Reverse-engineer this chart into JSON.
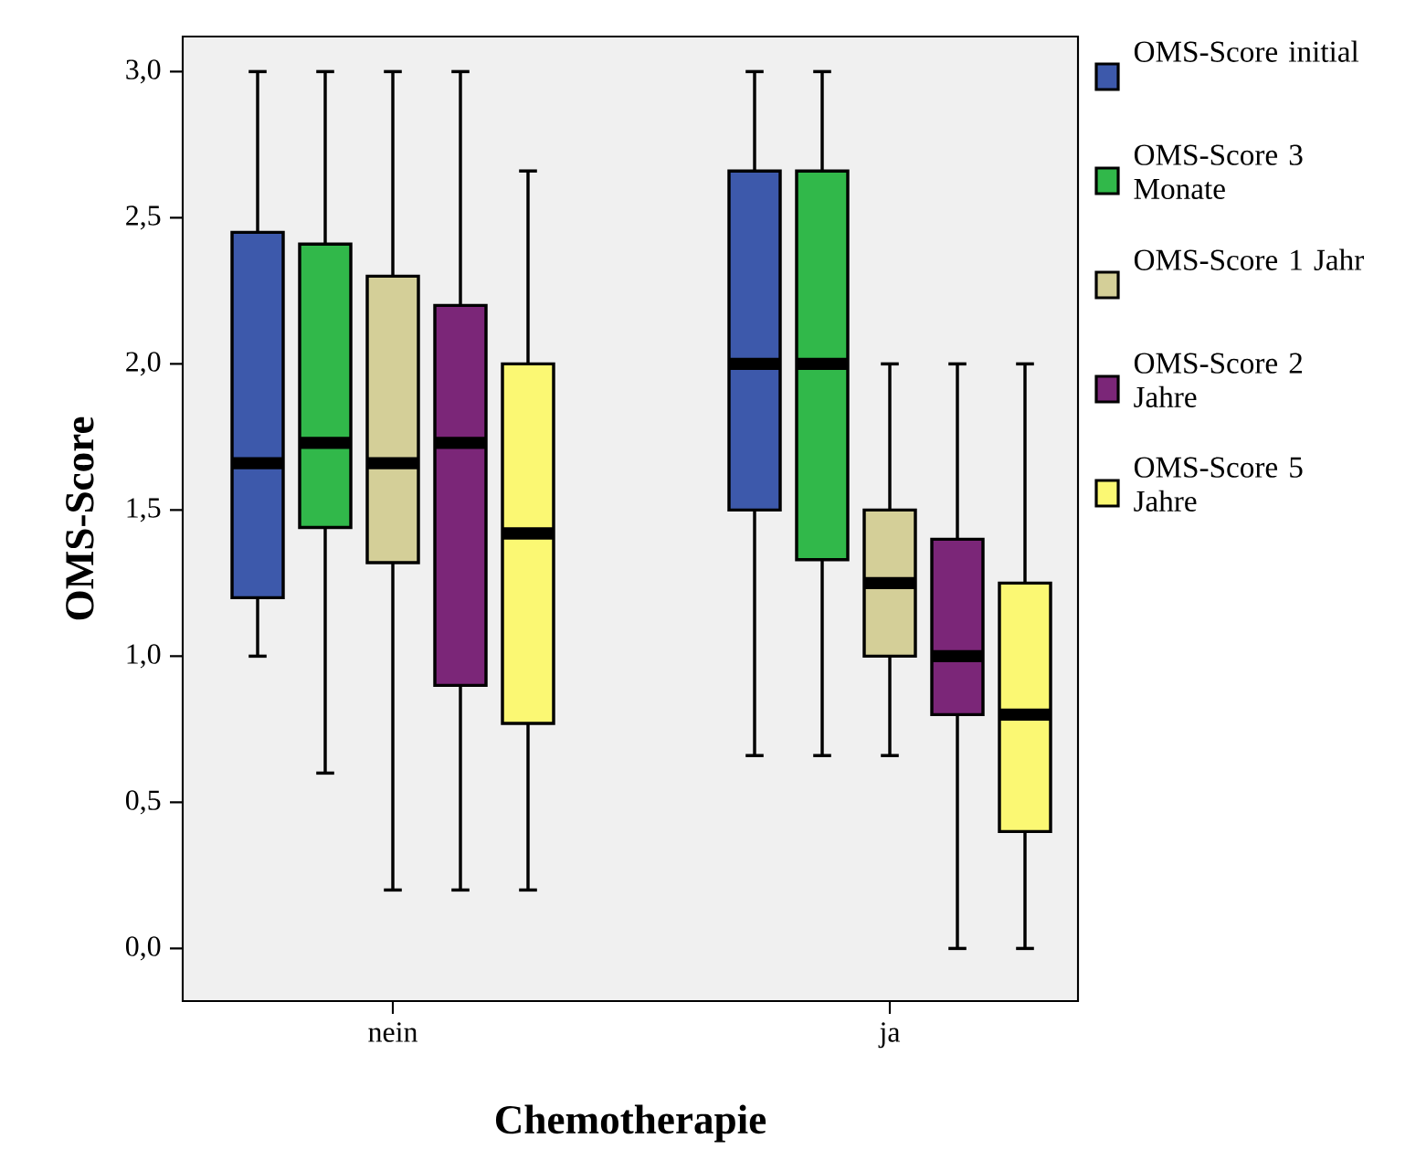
{
  "chart_data": {
    "type": "box",
    "xlabel": "Chemotherapie",
    "ylabel": "OMS-Score",
    "categories": [
      "nein",
      "ja"
    ],
    "ylim": [
      -0.18,
      3.12
    ],
    "yticks": [
      {
        "value": 0,
        "label": "0,0"
      },
      {
        "value": 0.5,
        "label": "0,5"
      },
      {
        "value": 1,
        "label": "1,0"
      },
      {
        "value": 1.5,
        "label": "1,5"
      },
      {
        "value": 2,
        "label": "2,0"
      },
      {
        "value": 2.5,
        "label": "2,5"
      },
      {
        "value": 3,
        "label": "3,0"
      }
    ],
    "legend": "right",
    "grid": false,
    "series": [
      {
        "name": "OMS-Score initial",
        "color": "#3d59ab",
        "boxes": [
          {
            "low": 1.0,
            "q1": 1.2,
            "median": 1.66,
            "q3": 2.45,
            "high": 3.0
          },
          {
            "low": 0.66,
            "q1": 1.5,
            "median": 2.0,
            "q3": 2.66,
            "high": 3.0
          }
        ]
      },
      {
        "name": "OMS-Score 3 Monate",
        "color": "#31b84a",
        "boxes": [
          {
            "low": 0.6,
            "q1": 1.44,
            "median": 1.73,
            "q3": 2.41,
            "high": 3.0
          },
          {
            "low": 0.66,
            "q1": 1.33,
            "median": 2.0,
            "q3": 2.66,
            "high": 3.0
          }
        ]
      },
      {
        "name": "OMS-Score 1 Jahr",
        "color": "#d4cf98",
        "boxes": [
          {
            "low": 0.2,
            "q1": 1.32,
            "median": 1.66,
            "q3": 2.3,
            "high": 3.0
          },
          {
            "low": 0.66,
            "q1": 1.0,
            "median": 1.25,
            "q3": 1.5,
            "high": 2.0
          }
        ]
      },
      {
        "name": "OMS-Score 2 Jahre",
        "color": "#7b2678",
        "boxes": [
          {
            "low": 0.2,
            "q1": 0.9,
            "median": 1.73,
            "q3": 2.2,
            "high": 3.0
          },
          {
            "low": 0.0,
            "q1": 0.8,
            "median": 1.0,
            "q3": 1.4,
            "high": 2.0
          }
        ]
      },
      {
        "name": "OMS-Score 5 Jahre",
        "color": "#fbf873",
        "boxes": [
          {
            "low": 0.2,
            "q1": 0.77,
            "median": 1.42,
            "q3": 2.0,
            "high": 2.66
          },
          {
            "low": 0.0,
            "q1": 0.4,
            "median": 0.8,
            "q3": 1.25,
            "high": 2.0
          }
        ]
      }
    ]
  }
}
